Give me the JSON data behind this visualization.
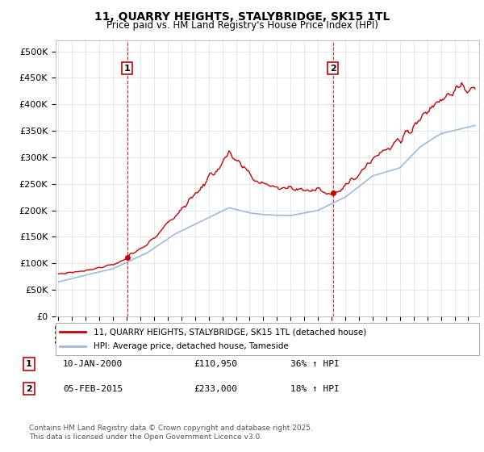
{
  "title": "11, QUARRY HEIGHTS, STALYBRIDGE, SK15 1TL",
  "subtitle": "Price paid vs. HM Land Registry's House Price Index (HPI)",
  "ylabel_ticks": [
    "£0",
    "£50K",
    "£100K",
    "£150K",
    "£200K",
    "£250K",
    "£300K",
    "£350K",
    "£400K",
    "£450K",
    "£500K"
  ],
  "ytick_values": [
    0,
    50000,
    100000,
    150000,
    200000,
    250000,
    300000,
    350000,
    400000,
    450000,
    500000
  ],
  "ylim": [
    0,
    520000
  ],
  "xlim_start": 1994.8,
  "xlim_end": 2025.8,
  "red_color": "#cc0000",
  "blue_color": "#99bbdd",
  "sale1_x": 2000.03,
  "sale1_price": 110950,
  "sale2_x": 2015.09,
  "sale2_price": 233000,
  "legend_label_red": "11, QUARRY HEIGHTS, STALYBRIDGE, SK15 1TL (detached house)",
  "legend_label_blue": "HPI: Average price, detached house, Tameside",
  "footer": "Contains HM Land Registry data © Crown copyright and database right 2025.\nThis data is licensed under the Open Government Licence v3.0.",
  "background_color": "#ffffff",
  "grid_color": "#dddddd"
}
